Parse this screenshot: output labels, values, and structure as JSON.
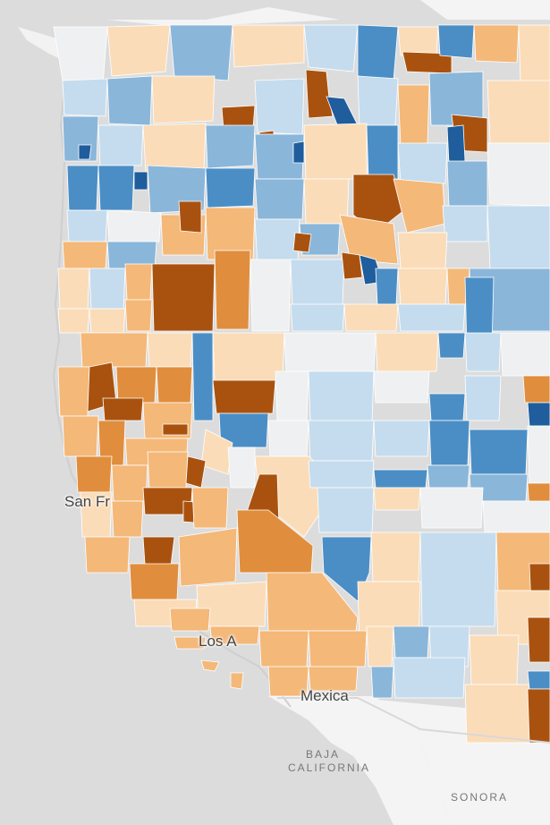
{
  "map": {
    "labels": {
      "san_francisco": "San Fr",
      "los_angeles": "Los A",
      "mexicali": "Mexica",
      "baja_line1": "BAJA",
      "baja_line2": "CALIFORNIA",
      "sonora": "SONORA"
    },
    "colors": {
      "ocean": "#dcdcdc",
      "land": "#f5f5f5",
      "border": "#ffffff",
      "dark_blue": "#1f5d9c",
      "blue": "#4b8ec6",
      "mid_blue": "#8ab6da",
      "light_blue": "#c5dcee",
      "neutral": "#eef0f2",
      "light_orange": "#fbdcb8",
      "mid_orange": "#f4b878",
      "orange": "#e08e3d",
      "dark_orange": "#a9520f"
    }
  }
}
